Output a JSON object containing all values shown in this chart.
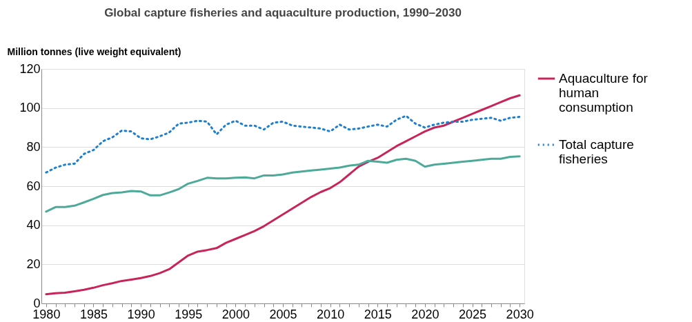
{
  "chart_data": {
    "type": "line",
    "title": "Global capture fisheries and aquaculture production, 1990–2030",
    "ylabel": "Million tonnes (live weight equivalent)",
    "x": [
      1980,
      1981,
      1982,
      1983,
      1984,
      1985,
      1986,
      1987,
      1988,
      1989,
      1990,
      1991,
      1992,
      1993,
      1994,
      1995,
      1996,
      1997,
      1998,
      1999,
      2000,
      2001,
      2002,
      2003,
      2004,
      2005,
      2006,
      2007,
      2008,
      2009,
      2010,
      2011,
      2012,
      2013,
      2014,
      2015,
      2016,
      2017,
      2018,
      2019,
      2020,
      2021,
      2022,
      2023,
      2024,
      2025,
      2026,
      2027,
      2028,
      2029,
      2030
    ],
    "series": [
      {
        "name": "Aquaculture for human consumption",
        "color": "#c8245a",
        "line_style": "solid",
        "values": [
          4.7,
          5.2,
          5.5,
          6.2,
          7,
          8,
          9.3,
          10.3,
          11.5,
          12.2,
          13,
          14,
          15.5,
          17.5,
          21,
          24.5,
          26.5,
          27.3,
          28.3,
          31,
          33,
          35,
          37,
          39.5,
          42.5,
          45.5,
          48.5,
          51.5,
          54.5,
          57,
          59,
          62,
          66,
          70,
          72.5,
          74.5,
          77.5,
          80.5,
          83,
          85.5,
          88,
          90,
          91,
          93,
          95,
          97,
          99,
          101,
          103,
          105,
          106.5
        ]
      },
      {
        "color": "#4daa98",
        "line_style": "solid",
        "values": [
          47,
          49.3,
          49.3,
          50,
          51.7,
          53.5,
          55.5,
          56.5,
          56.8,
          57.5,
          57.3,
          55.3,
          55.3,
          56.8,
          58.5,
          61.3,
          62.7,
          64.3,
          64,
          64,
          64.3,
          64.5,
          64,
          65.5,
          65.5,
          66,
          67,
          67.5,
          68,
          68.5,
          69,
          69.5,
          70.5,
          71,
          73,
          72.5,
          72,
          73.5,
          74,
          73,
          70,
          71,
          71.5,
          72,
          72.5,
          73,
          73.5,
          74,
          74,
          75,
          75.3
        ]
      },
      {
        "name": "Total capture fisheries",
        "color": "#1f7fcf",
        "line_style": "dotted",
        "values": [
          67,
          69.5,
          71,
          71.5,
          76.5,
          78.5,
          83,
          85,
          88.5,
          88,
          84.5,
          84,
          85.5,
          87.5,
          92,
          92.5,
          93.5,
          93,
          86.5,
          91.5,
          93.5,
          91,
          91,
          89,
          92.5,
          93,
          91,
          90.5,
          90,
          89.5,
          88,
          91.5,
          89,
          89.5,
          90.5,
          91.5,
          90.5,
          94,
          96,
          92,
          90,
          91.5,
          92.5,
          93,
          93,
          94,
          94.5,
          95,
          93.5,
          95,
          95.5
        ]
      }
    ],
    "xlim": [
      1979.5,
      2030.5
    ],
    "xticks": [
      1980,
      {
        "value": 1981,
        "label": null
      },
      {
        "value": 1982,
        "label": null
      },
      {
        "value": 1983,
        "label": null
      },
      {
        "value": 1984,
        "label": null
      },
      1985,
      {
        "value": 1986,
        "label": null
      },
      {
        "value": 1987,
        "label": null
      },
      {
        "value": 1988,
        "label": null
      },
      {
        "value": 1989,
        "label": null
      },
      1990,
      {
        "value": 1991,
        "label": null
      },
      {
        "value": 1992,
        "label": null
      },
      {
        "value": 1993,
        "label": null
      },
      {
        "value": 1994,
        "label": null
      },
      1995,
      {
        "value": 1996,
        "label": null
      },
      {
        "value": 1997,
        "label": null
      },
      {
        "value": 1998,
        "label": null
      },
      {
        "value": 1999,
        "label": null
      },
      2000,
      {
        "value": 2001,
        "label": null
      },
      {
        "value": 2002,
        "label": null
      },
      {
        "value": 2003,
        "label": null
      },
      {
        "value": 2004,
        "label": null
      },
      2005,
      {
        "value": 2006,
        "label": null
      },
      {
        "value": 2007,
        "label": null
      },
      {
        "value": 2008,
        "label": null
      },
      {
        "value": 2009,
        "label": null
      },
      2010,
      {
        "value": 2011,
        "label": null
      },
      {
        "value": 2012,
        "label": null
      },
      {
        "value": 2013,
        "label": null
      },
      {
        "value": 2014,
        "label": null
      },
      2015,
      {
        "value": 2016,
        "label": null
      },
      {
        "value": 2017,
        "label": null
      },
      {
        "value": 2018,
        "label": null
      },
      {
        "value": 2019,
        "label": null
      },
      2020,
      {
        "value": 2021,
        "label": null
      },
      {
        "value": 2022,
        "label": null
      },
      {
        "value": 2023,
        "label": null
      },
      {
        "value": 2024,
        "label": null
      },
      2025,
      {
        "value": 2026,
        "label": null
      },
      {
        "value": 2027,
        "label": null
      },
      {
        "value": 2028,
        "label": null
      },
      {
        "value": 2029,
        "label": null
      },
      2030
    ],
    "ylim": [
      0,
      120
    ],
    "yticks": [
      0,
      20,
      40,
      60,
      80,
      100,
      120
    ],
    "grid": "y",
    "legend": "right",
    "marker": "none"
  }
}
